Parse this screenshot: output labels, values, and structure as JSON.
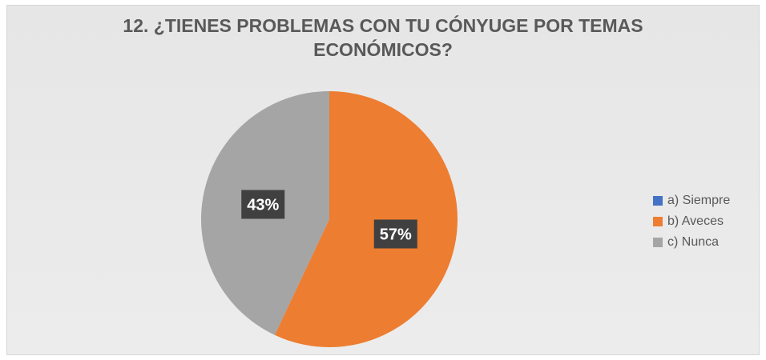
{
  "chart_data": {
    "type": "pie",
    "title_lines": [
      "12. ¿TIENES PROBLEMAS CON TU CÓNYUGE POR TEMAS",
      "ECONÓMICOS?"
    ],
    "categories": [
      "a) Siempre",
      "b) Aveces",
      "c) Nunca"
    ],
    "values": [
      0,
      57,
      43
    ],
    "labels": [
      "",
      "57%",
      "43%"
    ],
    "colors": [
      "#4472c4",
      "#ed7d31",
      "#a5a5a5"
    ],
    "legend_position": "right"
  }
}
